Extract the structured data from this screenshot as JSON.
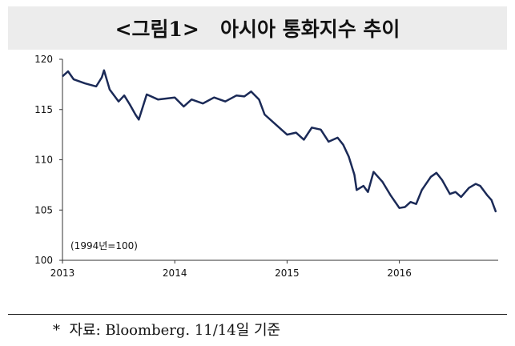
{
  "chart_data": {
    "type": "line",
    "title": "<그림1>   아시아 통화지수 추이",
    "annotation": "(1994년=100)",
    "note": "*  자료: Bloomberg. 11/14일 기준",
    "xlim": [
      2013,
      2016.88
    ],
    "xticks": [
      2013,
      2014,
      2015,
      2016
    ],
    "ylim": [
      100,
      120
    ],
    "yticks": [
      100,
      105,
      110,
      115,
      120
    ],
    "grid": false,
    "series": [
      {
        "name": "아시아 통화지수",
        "color": "#1b2a57",
        "x": [
          2013.0,
          2013.05,
          2013.1,
          2013.2,
          2013.3,
          2013.35,
          2013.37,
          2013.42,
          2013.5,
          2013.55,
          2013.6,
          2013.65,
          2013.68,
          2013.75,
          2013.85,
          2014.0,
          2014.08,
          2014.15,
          2014.25,
          2014.35,
          2014.45,
          2014.55,
          2014.62,
          2014.68,
          2014.75,
          2014.8,
          2014.9,
          2015.0,
          2015.08,
          2015.15,
          2015.22,
          2015.3,
          2015.37,
          2015.45,
          2015.5,
          2015.55,
          2015.6,
          2015.62,
          2015.68,
          2015.72,
          2015.77,
          2015.85,
          2015.92,
          2016.0,
          2016.05,
          2016.1,
          2016.15,
          2016.2,
          2016.28,
          2016.33,
          2016.38,
          2016.45,
          2016.5,
          2016.55,
          2016.62,
          2016.68,
          2016.72,
          2016.78,
          2016.82,
          2016.86
        ],
        "values": [
          118.3,
          118.8,
          118,
          117.6,
          117.3,
          118.2,
          118.9,
          117,
          115.8,
          116.4,
          115.5,
          114.5,
          114,
          116.5,
          116,
          116.2,
          115.3,
          116,
          115.6,
          116.2,
          115.8,
          116.4,
          116.3,
          116.8,
          116,
          114.5,
          113.5,
          112.5,
          112.7,
          112,
          113.2,
          113,
          111.8,
          112.2,
          111.5,
          110.3,
          108.5,
          107,
          107.4,
          106.8,
          108.8,
          107.8,
          106.5,
          105.2,
          105.3,
          105.8,
          105.6,
          107,
          108.3,
          108.7,
          108,
          106.6,
          106.8,
          106.3,
          107.2,
          107.6,
          107.4,
          106.5,
          106,
          104.8
        ]
      }
    ]
  }
}
